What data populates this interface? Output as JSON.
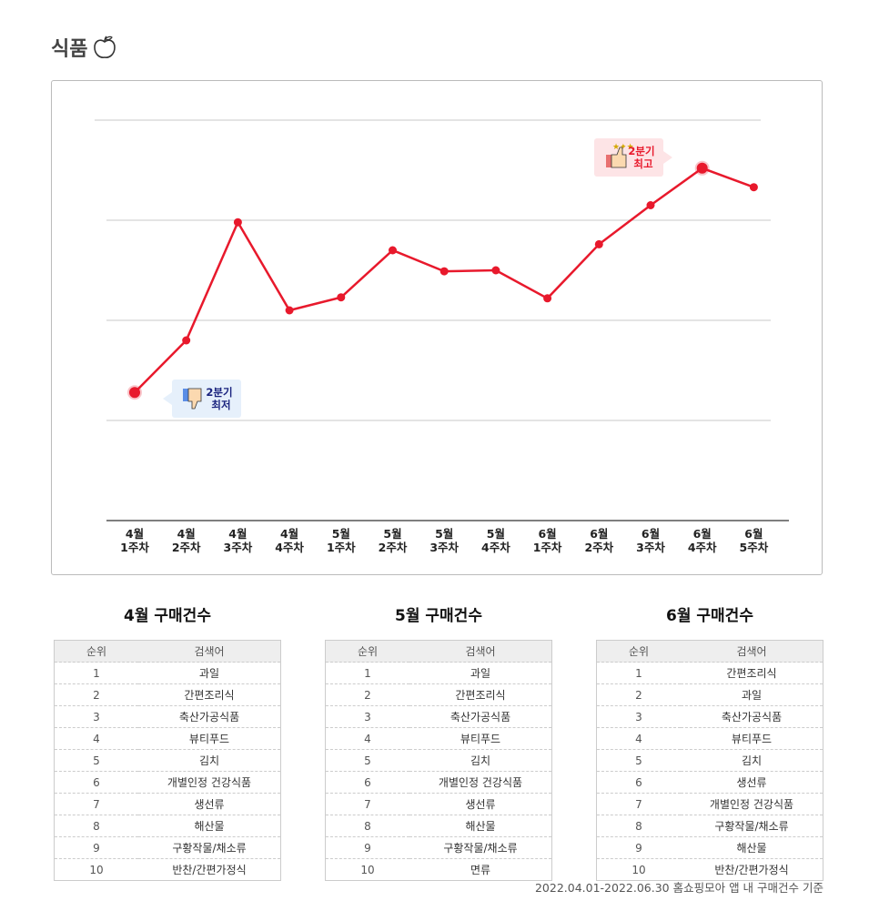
{
  "header": {
    "title": "식품",
    "icon": "apple-icon"
  },
  "chart_data": {
    "type": "line",
    "categories": [
      "4월 1주차",
      "4월 2주차",
      "4월 3주차",
      "4월 4주차",
      "5월 1주차",
      "5월 2주차",
      "5월 3주차",
      "5월 4주차",
      "6월 1주차",
      "6월 2주차",
      "6월 3주차",
      "6월 4주차",
      "6월 5주차"
    ],
    "values": [
      1.28,
      1.8,
      2.98,
      2.1,
      2.23,
      2.7,
      2.49,
      2.5,
      2.22,
      2.76,
      3.15,
      3.52,
      3.33
    ],
    "ylim": [
      0,
      4
    ],
    "grid": true,
    "color": "#e8192c",
    "annotations": [
      {
        "category": "6월 4주차",
        "text": [
          "2분기",
          "최고"
        ],
        "icon": "thumbs-up-icon",
        "color": "#e8192c",
        "bg": "#fde4e6"
      },
      {
        "category": "4월 1주차",
        "text": [
          "2분기",
          "최저"
        ],
        "icon": "thumbs-down-icon",
        "color": "#1a237e",
        "bg": "#e6f0fb"
      }
    ]
  },
  "tables": [
    {
      "title": "4월 구매건수",
      "headers": [
        "순위",
        "검색어"
      ],
      "rows": [
        [
          "1",
          "과일"
        ],
        [
          "2",
          "간편조리식"
        ],
        [
          "3",
          "축산가공식품"
        ],
        [
          "4",
          "뷰티푸드"
        ],
        [
          "5",
          "김치"
        ],
        [
          "6",
          "개별인정 건강식품"
        ],
        [
          "7",
          "생선류"
        ],
        [
          "8",
          "해산물"
        ],
        [
          "9",
          "구황작물/채소류"
        ],
        [
          "10",
          "반찬/간편가정식"
        ]
      ]
    },
    {
      "title": "5월 구매건수",
      "headers": [
        "순위",
        "검색어"
      ],
      "rows": [
        [
          "1",
          "과일"
        ],
        [
          "2",
          "간편조리식"
        ],
        [
          "3",
          "축산가공식품"
        ],
        [
          "4",
          "뷰티푸드"
        ],
        [
          "5",
          "김치"
        ],
        [
          "6",
          "개별인정 건강식품"
        ],
        [
          "7",
          "생선류"
        ],
        [
          "8",
          "해산물"
        ],
        [
          "9",
          "구황작물/채소류"
        ],
        [
          "10",
          "면류"
        ]
      ]
    },
    {
      "title": "6월 구매건수",
      "headers": [
        "순위",
        "검색어"
      ],
      "rows": [
        [
          "1",
          "간편조리식"
        ],
        [
          "2",
          "과일"
        ],
        [
          "3",
          "축산가공식품"
        ],
        [
          "4",
          "뷰티푸드"
        ],
        [
          "5",
          "김치"
        ],
        [
          "6",
          "생선류"
        ],
        [
          "7",
          "개별인정 건강식품"
        ],
        [
          "8",
          "구황작물/채소류"
        ],
        [
          "9",
          "해산물"
        ],
        [
          "10",
          "반찬/간편가정식"
        ]
      ]
    }
  ],
  "footer": "2022.04.01-2022.06.30 홈쇼핑모아 앱 내 구매건수 기준"
}
